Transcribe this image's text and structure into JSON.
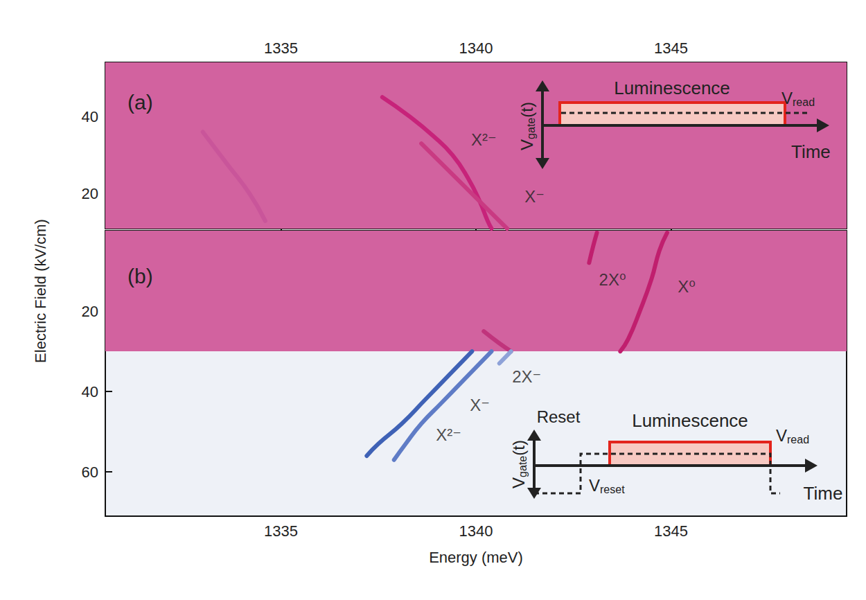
{
  "chart_data": [
    {
      "type": "line",
      "title": "(a)",
      "xlim": [
        1330.5,
        1349.5
      ],
      "xticks": [
        1335,
        1340,
        1345
      ],
      "ylim": [
        11,
        54
      ],
      "yticks": [
        20,
        40
      ],
      "grid": false,
      "regions": [
        {
          "ylim": [
            11,
            54
          ],
          "color": "#d2629f"
        }
      ],
      "series": [
        {
          "color": "#c7237a",
          "x": [
            1337.6,
            1338.3,
            1338.9,
            1339.4,
            1339.8,
            1340.1,
            1340.3,
            1340.4
          ],
          "values": [
            45,
            40,
            35,
            30,
            24,
            18,
            13,
            11
          ]
        },
        {
          "color": "#c93a82",
          "x": [
            1338.6,
            1339.2,
            1339.8,
            1340.3,
            1340.8
          ],
          "values": [
            33,
            27,
            21,
            16,
            11
          ]
        },
        {
          "color": "#c9559a",
          "x": [
            1333.0,
            1333.6,
            1334.2,
            1334.6
          ],
          "values": [
            36,
            28,
            20,
            13
          ]
        }
      ],
      "annotations": [
        {
          "text": "X²⁻",
          "x": 1340.2,
          "y": 34.1
        },
        {
          "text": "X⁻",
          "x": 1341.5,
          "y": 19.3
        }
      ],
      "inset": {
        "luminescence": "Luminescence",
        "v_read": "Vread",
        "v_gate": "Vgate(t)",
        "time": "Time"
      }
    },
    {
      "type": "line",
      "title": "(b)",
      "xlabel": "Energy (meV)",
      "ylabel": "Electric Field (kV/cm)",
      "xlim": [
        1330.5,
        1349.5
      ],
      "xticks": [
        1335,
        1340,
        1345
      ],
      "ylim": [
        71,
        0
      ],
      "yticks": [
        20,
        40,
        60
      ],
      "grid": false,
      "regions": [
        {
          "ylim": [
            0,
            30
          ],
          "color": "#d2629f"
        }
      ],
      "series": [
        {
          "color": "#c01f6e",
          "x": [
            1344.9,
            1344.7,
            1344.5,
            1344.2,
            1343.9,
            1343.7
          ],
          "values": [
            0.5,
            5,
            12,
            20,
            27,
            30
          ]
        },
        {
          "color": "#c01f6e",
          "x": [
            1343.1,
            1343.0,
            1342.9
          ],
          "values": [
            0.5,
            4,
            8
          ]
        },
        {
          "color": "#c0347c",
          "x": [
            1340.2,
            1340.6,
            1340.9
          ],
          "values": [
            25,
            28,
            30
          ]
        },
        {
          "color": "#3f62b6",
          "x": [
            1339.9,
            1339.3,
            1338.7,
            1338.1,
            1337.5,
            1337.2
          ],
          "values": [
            30,
            36,
            42,
            48,
            53,
            56
          ]
        },
        {
          "color": "#5f7cc6",
          "x": [
            1340.4,
            1339.7,
            1339.1,
            1338.6,
            1338.2,
            1337.9
          ],
          "values": [
            30,
            37,
            43,
            48,
            53,
            57
          ]
        },
        {
          "color": "#8ea2d8",
          "x": [
            1340.9,
            1340.6
          ],
          "values": [
            30,
            33
          ]
        }
      ],
      "annotations": [
        {
          "text": "2X⁰",
          "x": 1343.5,
          "y": 12.1
        },
        {
          "text": "X⁰",
          "x": 1345.4,
          "y": 13.8
        },
        {
          "text": "2X⁻",
          "x": 1341.3,
          "y": 36.2
        },
        {
          "text": "X⁻",
          "x": 1340.1,
          "y": 43.4
        },
        {
          "text": "X²⁻",
          "x": 1339.3,
          "y": 50.7
        }
      ],
      "inset": {
        "reset": "Reset",
        "luminescence": "Luminescence",
        "v_read": "Vread",
        "v_reset": "Vreset",
        "v_gate": "Vgate(t)",
        "time": "Time"
      }
    }
  ]
}
